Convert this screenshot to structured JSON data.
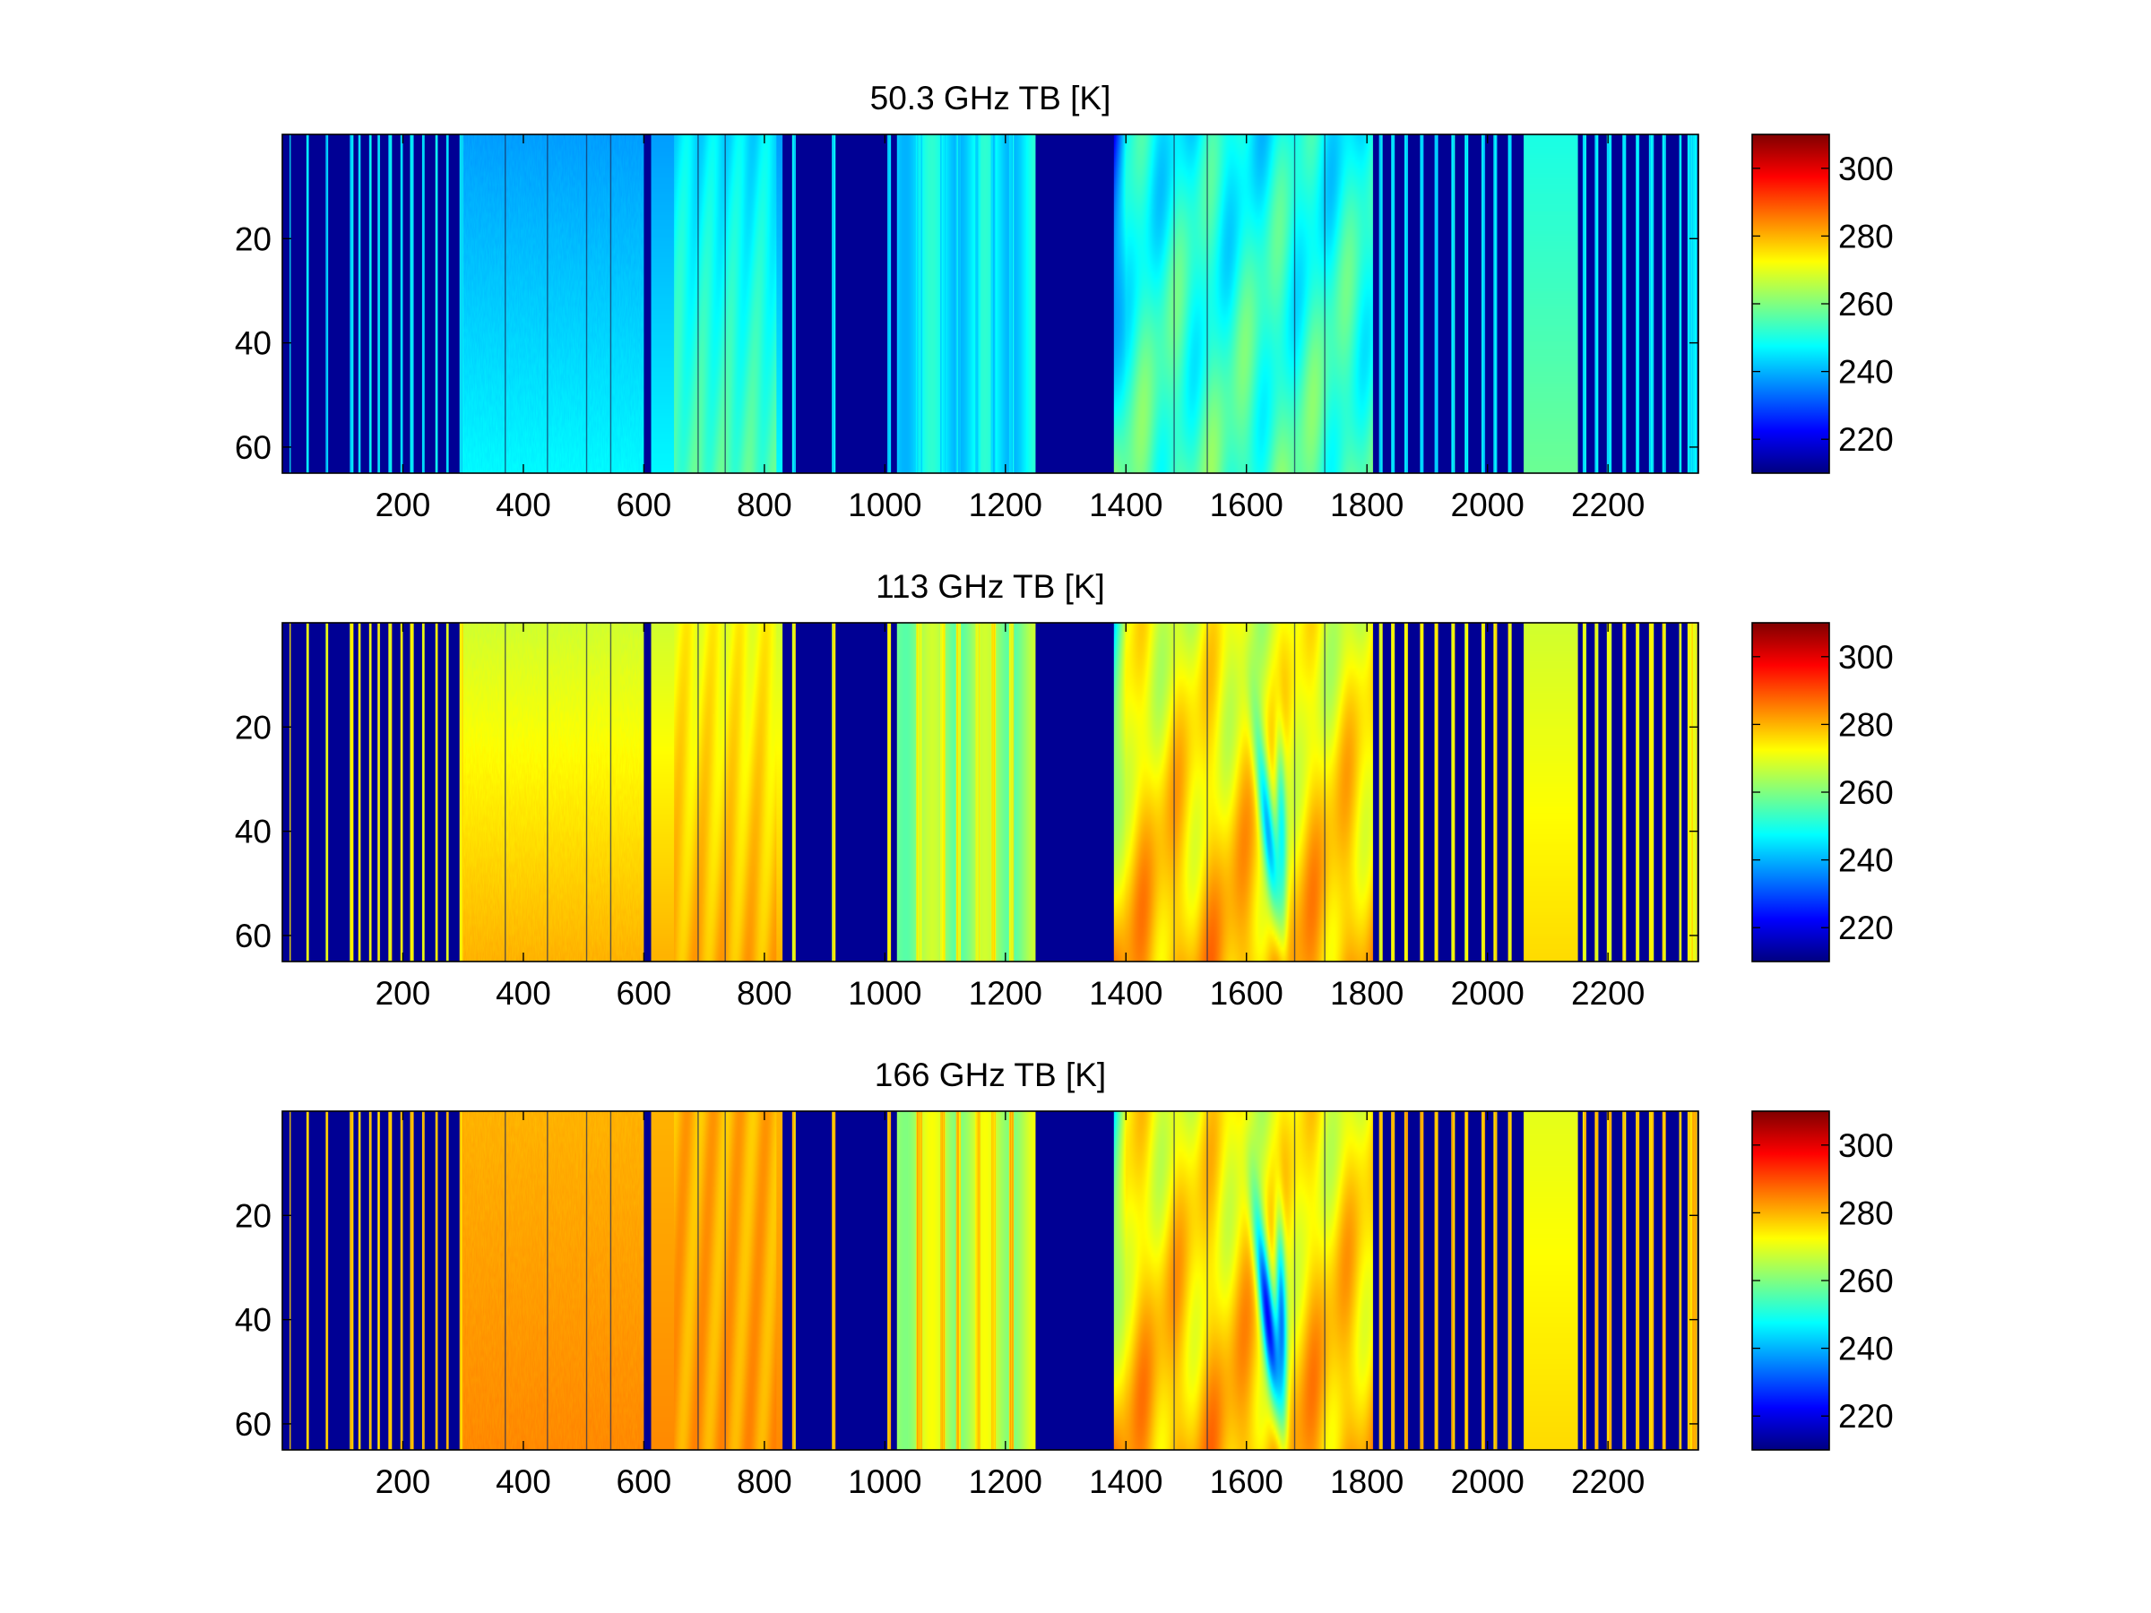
{
  "figure": {
    "background": "#ffffff",
    "axis_color": "#000000"
  },
  "chart_data": [
    {
      "type": "heatmap",
      "title": "50.3 GHz TB [K]",
      "xlabel": "",
      "ylabel": "",
      "xlim": [
        0,
        2350
      ],
      "ylim": [
        65,
        0
      ],
      "y_reversed": true,
      "xticks": [
        200,
        400,
        600,
        800,
        1000,
        1200,
        1400,
        1600,
        1800,
        2000,
        2200
      ],
      "yticks": [
        20,
        40,
        60
      ],
      "colorbar": {
        "colormap": "jet",
        "range": [
          210,
          310
        ],
        "ticks": [
          220,
          240,
          260,
          280,
          300
        ]
      },
      "value_profile": [
        {
          "x_start": 300,
          "x_end": 600,
          "value_top": 238,
          "value_bottom": 247
        },
        {
          "x_start": 650,
          "x_end": 820,
          "value_top": 245,
          "value_bottom": 255
        },
        {
          "x_start": 1380,
          "x_end": 1810,
          "value_top": 248,
          "value_bottom": 255
        },
        {
          "x_start": 2060,
          "x_end": 2150,
          "value_top": 250,
          "value_bottom": 258
        }
      ]
    },
    {
      "type": "heatmap",
      "title": "113 GHz TB [K]",
      "xlabel": "",
      "ylabel": "",
      "xlim": [
        0,
        2350
      ],
      "ylim": [
        65,
        0
      ],
      "y_reversed": true,
      "xticks": [
        200,
        400,
        600,
        800,
        1000,
        1200,
        1400,
        1600,
        1800,
        2000,
        2200
      ],
      "yticks": [
        20,
        40,
        60
      ],
      "colorbar": {
        "colormap": "jet",
        "range": [
          210,
          310
        ],
        "ticks": [
          220,
          240,
          260,
          280,
          300
        ]
      },
      "value_profile": [
        {
          "x_start": 300,
          "x_end": 600,
          "value_top": 268,
          "value_bottom": 280
        },
        {
          "x_start": 650,
          "x_end": 820,
          "value_top": 272,
          "value_bottom": 280
        },
        {
          "x_start": 1380,
          "x_end": 1810,
          "value_top": 270,
          "value_bottom": 280
        },
        {
          "x_start": 2060,
          "x_end": 2150,
          "value_top": 268,
          "value_bottom": 276
        }
      ]
    },
    {
      "type": "heatmap",
      "title": "166 GHz TB [K]",
      "xlabel": "",
      "ylabel": "",
      "xlim": [
        0,
        2350
      ],
      "ylim": [
        65,
        0
      ],
      "y_reversed": true,
      "xticks": [
        200,
        400,
        600,
        800,
        1000,
        1200,
        1400,
        1600,
        1800,
        2000,
        2200
      ],
      "yticks": [
        20,
        40,
        60
      ],
      "colorbar": {
        "colormap": "jet",
        "range": [
          210,
          310
        ],
        "ticks": [
          220,
          240,
          260,
          280,
          300
        ]
      },
      "value_profile": [
        {
          "x_start": 300,
          "x_end": 600,
          "value_top": 280,
          "value_bottom": 284
        },
        {
          "x_start": 650,
          "x_end": 820,
          "value_top": 280,
          "value_bottom": 282
        },
        {
          "x_start": 1380,
          "x_end": 1810,
          "value_top": 272,
          "value_bottom": 280
        },
        {
          "x_start": 2060,
          "x_end": 2150,
          "value_top": 270,
          "value_bottom": 276
        }
      ]
    }
  ]
}
